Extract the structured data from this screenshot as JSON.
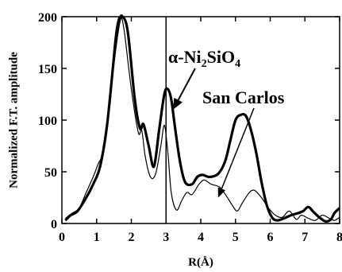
{
  "chart_data": {
    "type": "line",
    "title": "",
    "xlabel": "R(Å)",
    "ylabel": "Normalized F.T. amplitude",
    "xlim": [
      0,
      8
    ],
    "ylim": [
      0,
      200
    ],
    "x_ticks": [
      "0",
      "1",
      "2",
      "3",
      "4",
      "5",
      "6",
      "7",
      "8"
    ],
    "y_ticks": [
      "0",
      "50",
      "100",
      "150",
      "200"
    ],
    "grid": false,
    "legend": "none",
    "vertical_marker": 3.0,
    "annotations": {
      "ni2sio4": {
        "alpha": "α-Ni",
        "sub1": "2",
        "mid": "SiO",
        "sub2": "4",
        "arrow_to": [
          3.2,
          110
        ]
      },
      "san_carlos": {
        "text": "San Carlos",
        "arrow_to": [
          4.5,
          25
        ]
      }
    },
    "series": [
      {
        "color": "#000000",
        "stroke": "thick",
        "x": [
          0.1,
          0.25,
          0.45,
          0.7,
          0.9,
          1.1,
          1.3,
          1.5,
          1.65,
          1.75,
          1.9,
          2.1,
          2.25,
          2.35,
          2.5,
          2.65,
          2.8,
          2.95,
          3.05,
          3.15,
          3.25,
          3.4,
          3.55,
          3.75,
          3.9,
          4.05,
          4.25,
          4.5,
          4.7,
          4.85,
          5.0,
          5.15,
          5.3,
          5.45,
          5.6,
          5.75,
          5.9,
          6.05,
          6.2,
          6.4,
          6.6,
          6.8,
          6.95,
          7.1,
          7.25,
          7.45,
          7.6,
          7.75,
          7.85,
          8.0
        ],
        "y": [
          3,
          8,
          12,
          25,
          38,
          55,
          95,
          160,
          195,
          200,
          185,
          120,
          92,
          96,
          75,
          55,
          90,
          125,
          130,
          120,
          95,
          60,
          40,
          38,
          45,
          47,
          45,
          48,
          60,
          80,
          100,
          105,
          104,
          90,
          68,
          40,
          18,
          6,
          3,
          5,
          8,
          10,
          12,
          16,
          11,
          5,
          2,
          4,
          10,
          15
        ]
      },
      {
        "color": "#000000",
        "stroke": "thin",
        "x": [
          0.1,
          0.3,
          0.5,
          0.7,
          0.9,
          1.05,
          1.2,
          1.35,
          1.5,
          1.6,
          1.7,
          1.8,
          2.0,
          2.2,
          2.3,
          2.4,
          2.55,
          2.7,
          2.85,
          2.95,
          3.05,
          3.15,
          3.3,
          3.45,
          3.6,
          3.75,
          3.95,
          4.1,
          4.3,
          4.55,
          4.75,
          4.9,
          5.05,
          5.2,
          5.4,
          5.55,
          5.75,
          5.95,
          6.15,
          6.35,
          6.55,
          6.75,
          6.9,
          7.1,
          7.3,
          7.5,
          7.7,
          7.85,
          8.0
        ],
        "y": [
          5,
          10,
          15,
          30,
          45,
          58,
          70,
          110,
          170,
          195,
          200,
          185,
          130,
          88,
          90,
          65,
          45,
          48,
          75,
          95,
          70,
          30,
          13,
          22,
          30,
          28,
          38,
          42,
          38,
          35,
          26,
          18,
          12,
          20,
          30,
          32,
          25,
          15,
          8,
          6,
          12,
          4,
          8,
          5,
          3,
          8,
          5,
          3,
          6
        ]
      }
    ]
  }
}
